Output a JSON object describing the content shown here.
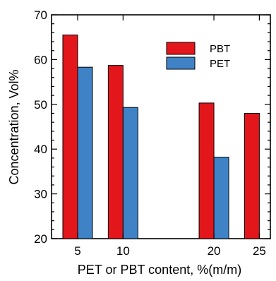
{
  "chart_data": {
    "type": "bar",
    "title": "",
    "xlabel": "PET or PBT content, %(m/m)",
    "ylabel": "Concentration, Vol%",
    "ylim": [
      20,
      70
    ],
    "yticks": [
      20,
      30,
      40,
      50,
      60,
      70
    ],
    "xticks": [
      5,
      10,
      20,
      25
    ],
    "x_positions": [
      5,
      10,
      20,
      25
    ],
    "grid": false,
    "legend_position": "top-right",
    "series": [
      {
        "name": "PBT",
        "color": "#e3161b",
        "values": [
          65.5,
          58.7,
          50.3,
          48.0
        ]
      },
      {
        "name": "PET",
        "color": "#3f83c6",
        "values": [
          58.3,
          49.3,
          38.2,
          null
        ]
      }
    ]
  }
}
